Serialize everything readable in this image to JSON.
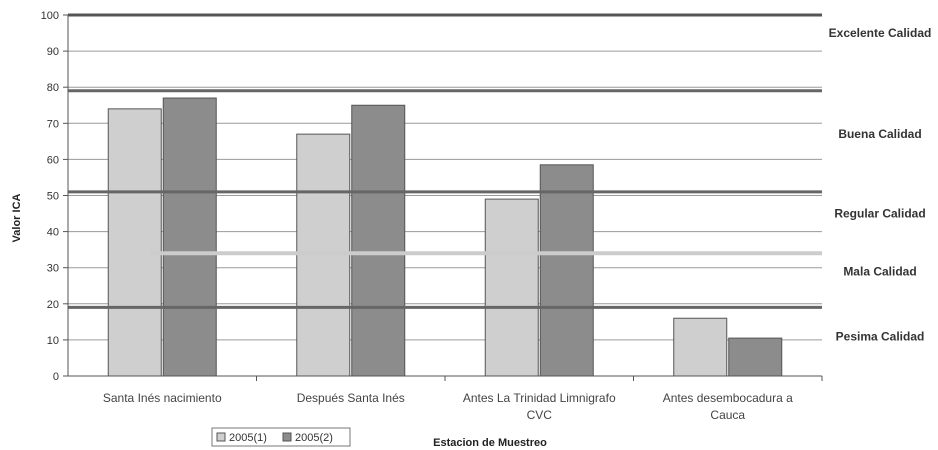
{
  "chart_data": {
    "type": "bar",
    "title": "",
    "xlabel": "Estacion de Muestreo",
    "ylabel": "Valor ICA",
    "ylim": [
      0,
      100
    ],
    "yticks": [
      0,
      10,
      20,
      30,
      40,
      50,
      60,
      70,
      80,
      90,
      100
    ],
    "grid": true,
    "legend_position": "bottom-left",
    "categories": [
      [
        "Santa Inés nacimiento"
      ],
      [
        "Después Santa Inés"
      ],
      [
        "Antes La Trinidad Limnigrafo",
        "CVC"
      ],
      [
        "Antes desembocadura a",
        "Cauca"
      ]
    ],
    "series": [
      {
        "name": "2005(1)",
        "color": "#cfcfcf",
        "values": [
          74,
          67,
          49,
          16
        ]
      },
      {
        "name": "2005(2)",
        "color": "#8c8c8c",
        "values": [
          77,
          75,
          58.5,
          10.5
        ]
      }
    ],
    "quality_bands": [
      {
        "label": "Excelente Calidad",
        "label_y": 95
      },
      {
        "label": "Buena Calidad",
        "label_y": 67
      },
      {
        "label": "Regular Calidad",
        "label_y": 45
      },
      {
        "label": "Mala Calidad",
        "label_y": 29
      },
      {
        "label": "Pesima Calidad",
        "label_y": 11
      }
    ],
    "thresholds": [
      {
        "value": 100,
        "color": "#555555"
      },
      {
        "value": 79,
        "color": "#666666"
      },
      {
        "value": 51,
        "color": "#666666"
      },
      {
        "value": 34,
        "color": "#cccccc"
      },
      {
        "value": 19,
        "color": "#666666"
      }
    ]
  }
}
